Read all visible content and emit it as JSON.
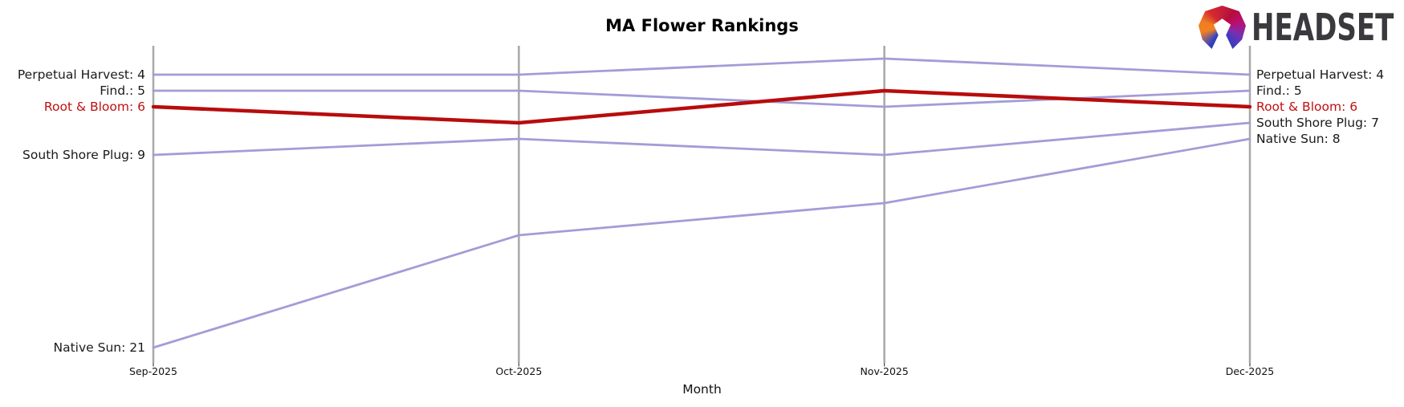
{
  "header": {
    "logo_text": "HEADSET"
  },
  "chart_data": {
    "type": "line",
    "subtype": "bump-rank-chart",
    "title": "MA Flower Rankings",
    "xlabel": "Month",
    "x": [
      "Sep-2025",
      "Oct-2025",
      "Nov-2025",
      "Dec-2025"
    ],
    "y_axis": {
      "unit": "rank",
      "inverted": true,
      "approx_visible_range": [
        2,
        22
      ],
      "tick_labels_shown": false
    },
    "grid": "vertical-month-axis-lines",
    "legend_position": "edge-labels",
    "series": [
      {
        "name": "Perpetual Harvest",
        "values": [
          4,
          4,
          3,
          4
        ],
        "color": "#a29dd7",
        "emphasis": false,
        "left_label": "Perpetual Harvest: 4",
        "right_label": "Perpetual Harvest: 4"
      },
      {
        "name": "Find.",
        "values": [
          5,
          5,
          6,
          5
        ],
        "color": "#a29dd7",
        "emphasis": false,
        "left_label": "Find.: 5",
        "right_label": "Find.: 5"
      },
      {
        "name": "South Shore Plug",
        "values": [
          9,
          8,
          9,
          7
        ],
        "color": "#a29dd7",
        "emphasis": false,
        "left_label": "South Shore Plug: 9",
        "right_label": "South Shore Plug: 7"
      },
      {
        "name": "Native Sun",
        "values": [
          21,
          14,
          12,
          8
        ],
        "color": "#a29dd7",
        "emphasis": false,
        "left_label": "Native Sun: 21",
        "right_label": "Native Sun: 8"
      },
      {
        "name": "Root & Bloom",
        "values": [
          6,
          7,
          5,
          6
        ],
        "color": "#b80c0c",
        "emphasis": true,
        "left_label": "Root & Bloom: 6",
        "right_label": "Root & Bloom: 6"
      }
    ]
  },
  "colors": {
    "background": "#ffffff",
    "axis_line": "#a8a8a8",
    "tick_mark": "#444444",
    "label_default": "#1a1a1a",
    "label_emphasis": "#c01010",
    "series_default": "#a29dd7",
    "series_emphasis": "#b80c0c",
    "logo_text": "#3a3a3e"
  }
}
